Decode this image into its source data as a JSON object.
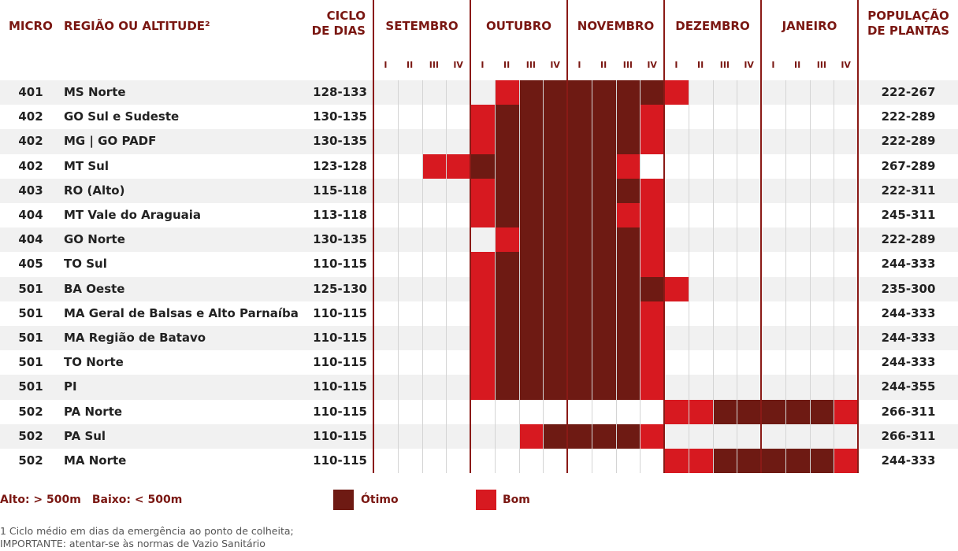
{
  "headers": {
    "micro": "MICRO",
    "regiao": "REGIÃO OU ALTITUDE²",
    "ciclo_line1": "CICLO",
    "ciclo_line2": "DE DIAS",
    "pop_line1": "POPULAÇÃO",
    "pop_line2": "DE PLANTAS"
  },
  "months": [
    "SETEMBRO",
    "OUTUBRO",
    "NOVEMBRO",
    "DEZEMBRO",
    "JANEIRO"
  ],
  "weeks": [
    "I",
    "II",
    "III",
    "IV"
  ],
  "colors": {
    "otimo": "#6e1a13",
    "bom": "#d71920",
    "header": "#7a1712"
  },
  "rows": [
    {
      "micro": "401",
      "regiao": "MS Norte",
      "ciclo": "128-133",
      "pop": "222-267",
      "periods": [
        "",
        "",
        "",
        "",
        "",
        "B",
        "O",
        "O",
        "O",
        "O",
        "O",
        "O",
        "B",
        "",
        "",
        "",
        "",
        "",
        "",
        ""
      ]
    },
    {
      "micro": "402",
      "regiao": "GO Sul e Sudeste",
      "ciclo": "130-135",
      "pop": "222-289",
      "periods": [
        "",
        "",
        "",
        "",
        "B",
        "O",
        "O",
        "O",
        "O",
        "O",
        "O",
        "B",
        "",
        "",
        "",
        "",
        "",
        "",
        "",
        ""
      ]
    },
    {
      "micro": "402",
      "regiao": "MG | GO PADF",
      "ciclo": "130-135",
      "pop": "222-289",
      "periods": [
        "",
        "",
        "",
        "",
        "B",
        "O",
        "O",
        "O",
        "O",
        "O",
        "O",
        "B",
        "",
        "",
        "",
        "",
        "",
        "",
        "",
        ""
      ]
    },
    {
      "micro": "402",
      "regiao": "MT Sul",
      "ciclo": "123-128",
      "pop": "267-289",
      "periods": [
        "",
        "",
        "B",
        "B",
        "O",
        "O",
        "O",
        "O",
        "O",
        "O",
        "B",
        "",
        "",
        "",
        "",
        "",
        "",
        "",
        "",
        ""
      ]
    },
    {
      "micro": "403",
      "regiao": "RO (Alto)",
      "ciclo": "115-118",
      "pop": "222-311",
      "periods": [
        "",
        "",
        "",
        "",
        "B",
        "O",
        "O",
        "O",
        "O",
        "O",
        "O",
        "B",
        "",
        "",
        "",
        "",
        "",
        "",
        "",
        ""
      ]
    },
    {
      "micro": "404",
      "regiao": "MT Vale do Araguaia",
      "ciclo": "113-118",
      "pop": "245-311",
      "periods": [
        "",
        "",
        "",
        "",
        "B",
        "O",
        "O",
        "O",
        "O",
        "O",
        "B",
        "B",
        "",
        "",
        "",
        "",
        "",
        "",
        "",
        ""
      ]
    },
    {
      "micro": "404",
      "regiao": "GO Norte",
      "ciclo": "130-135",
      "pop": "222-289",
      "periods": [
        "",
        "",
        "",
        "",
        "",
        "B",
        "O",
        "O",
        "O",
        "O",
        "O",
        "B",
        "",
        "",
        "",
        "",
        "",
        "",
        "",
        ""
      ]
    },
    {
      "micro": "405",
      "regiao": "TO Sul",
      "ciclo": "110-115",
      "pop": "244-333",
      "periods": [
        "",
        "",
        "",
        "",
        "B",
        "O",
        "O",
        "O",
        "O",
        "O",
        "O",
        "B",
        "",
        "",
        "",
        "",
        "",
        "",
        "",
        ""
      ]
    },
    {
      "micro": "501",
      "regiao": "BA Oeste",
      "ciclo": "125-130",
      "pop": "235-300",
      "periods": [
        "",
        "",
        "",
        "",
        "B",
        "O",
        "O",
        "O",
        "O",
        "O",
        "O",
        "O",
        "B",
        "",
        "",
        "",
        "",
        "",
        "",
        ""
      ]
    },
    {
      "micro": "501",
      "regiao": "MA Geral de Balsas e Alto Parnaíba",
      "ciclo": "110-115",
      "pop": "244-333",
      "periods": [
        "",
        "",
        "",
        "",
        "B",
        "O",
        "O",
        "O",
        "O",
        "O",
        "O",
        "B",
        "",
        "",
        "",
        "",
        "",
        "",
        "",
        ""
      ]
    },
    {
      "micro": "501",
      "regiao": "MA Região de Batavo",
      "ciclo": "110-115",
      "pop": "244-333",
      "periods": [
        "",
        "",
        "",
        "",
        "B",
        "O",
        "O",
        "O",
        "O",
        "O",
        "O",
        "B",
        "",
        "",
        "",
        "",
        "",
        "",
        "",
        ""
      ]
    },
    {
      "micro": "501",
      "regiao": "TO Norte",
      "ciclo": "110-115",
      "pop": "244-333",
      "periods": [
        "",
        "",
        "",
        "",
        "B",
        "O",
        "O",
        "O",
        "O",
        "O",
        "O",
        "B",
        "",
        "",
        "",
        "",
        "",
        "",
        "",
        ""
      ]
    },
    {
      "micro": "501",
      "regiao": "PI",
      "ciclo": "110-115",
      "pop": "244-355",
      "periods": [
        "",
        "",
        "",
        "",
        "B",
        "O",
        "O",
        "O",
        "O",
        "O",
        "O",
        "B",
        "",
        "",
        "",
        "",
        "",
        "",
        "",
        ""
      ]
    },
    {
      "micro": "502",
      "regiao": "PA Norte",
      "ciclo": "110-115",
      "pop": "266-311",
      "periods": [
        "",
        "",
        "",
        "",
        "",
        "",
        "",
        "",
        "",
        "",
        "",
        "",
        "B",
        "B",
        "O",
        "O",
        "O",
        "O",
        "O",
        "B"
      ]
    },
    {
      "micro": "502",
      "regiao": "PA Sul",
      "ciclo": "110-115",
      "pop": "266-311",
      "periods": [
        "",
        "",
        "",
        "",
        "",
        "",
        "B",
        "O",
        "O",
        "O",
        "O",
        "B",
        "",
        "",
        "",
        "",
        "",
        "",
        "",
        ""
      ]
    },
    {
      "micro": "502",
      "regiao": "MA Norte",
      "ciclo": "110-115",
      "pop": "244-333",
      "periods": [
        "",
        "",
        "",
        "",
        "",
        "",
        "",
        "",
        "",
        "",
        "",
        "",
        "B",
        "B",
        "O",
        "O",
        "O",
        "O",
        "O",
        "B"
      ]
    }
  ],
  "legend": {
    "alto": "Alto: > 500m",
    "baixo": "Baixo: < 500m",
    "otimo": "Ótimo",
    "bom": "Bom"
  },
  "notes": {
    "line1": "1 Ciclo médio em dias da emergência ao ponto de colheita;",
    "line2": "IMPORTANTE: atentar-se às normas de Vazio Sanitário"
  }
}
